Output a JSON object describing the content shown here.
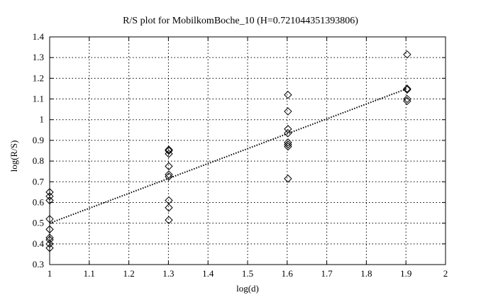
{
  "chart_data": {
    "type": "scatter",
    "title": "R/S plot for MobilkomBoche_10 (H=0.721044351393806)",
    "xlabel": "log(d)",
    "ylabel": "log(R/S)",
    "xlim": [
      1,
      2
    ],
    "ylim": [
      0.3,
      1.4
    ],
    "xticks": [
      "1",
      "1.1",
      "1.2",
      "1.3",
      "1.4",
      "1.5",
      "1.6",
      "1.7",
      "1.8",
      "1.9",
      "2"
    ],
    "yticks": [
      "0.3",
      "0.4",
      "0.5",
      "0.6",
      "0.7",
      "0.8",
      "0.9",
      "1",
      "1.1",
      "1.2",
      "1.3",
      "1.4"
    ],
    "grid": true,
    "series": [
      {
        "marker": "diamond",
        "points": [
          [
            1.0,
            0.65
          ],
          [
            1.0,
            0.63
          ],
          [
            1.0,
            0.61
          ],
          [
            1.0,
            0.52
          ],
          [
            1.0,
            0.47
          ],
          [
            1.0,
            0.43
          ],
          [
            1.0,
            0.42
          ],
          [
            1.0,
            0.4
          ],
          [
            1.0,
            0.38
          ],
          [
            1.301,
            0.855
          ],
          [
            1.301,
            0.85
          ],
          [
            1.301,
            0.835
          ],
          [
            1.301,
            0.775
          ],
          [
            1.301,
            0.735
          ],
          [
            1.301,
            0.725
          ],
          [
            1.301,
            0.61
          ],
          [
            1.301,
            0.575
          ],
          [
            1.301,
            0.515
          ],
          [
            1.602,
            1.12
          ],
          [
            1.602,
            1.04
          ],
          [
            1.602,
            0.955
          ],
          [
            1.602,
            0.935
          ],
          [
            1.602,
            0.89
          ],
          [
            1.602,
            0.88
          ],
          [
            1.602,
            0.87
          ],
          [
            1.602,
            0.715
          ],
          [
            1.903,
            1.315
          ],
          [
            1.903,
            1.15
          ],
          [
            1.903,
            1.145
          ],
          [
            1.903,
            1.1
          ],
          [
            1.903,
            1.09
          ]
        ]
      },
      {
        "line_style": "dotted",
        "points": [
          [
            1.0,
            0.5
          ],
          [
            1.903,
            1.15
          ]
        ]
      }
    ]
  }
}
